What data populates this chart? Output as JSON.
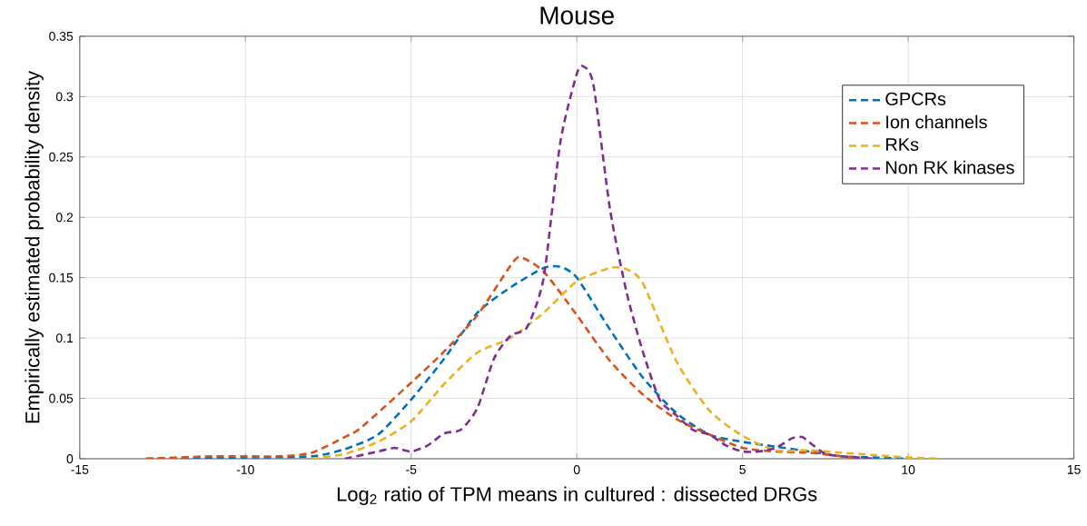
{
  "chart_data": {
    "type": "line",
    "title": "Mouse",
    "xlabel": "Log$_{2}$ ratio of TPM means in cultured : dissected DRGs",
    "ylabel": "Empirically estimated probability density",
    "xlim": [
      -15,
      15
    ],
    "ylim": [
      0,
      0.35
    ],
    "xticks": [
      -15,
      -10,
      -5,
      0,
      5,
      10,
      15
    ],
    "yticks": [
      0,
      0.05,
      0.1,
      0.15,
      0.2,
      0.25,
      0.3,
      0.35
    ],
    "grid": true,
    "legend": "top right",
    "line_style": "dashed",
    "marker": "none",
    "series": [
      {
        "name": "GPCRs",
        "color": "#0072bd",
        "x": [
          -13,
          -10,
          -8,
          -7,
          -6,
          -5,
          -4,
          -3,
          -2,
          -1,
          -0.5,
          0,
          1,
          2,
          3,
          4,
          5,
          6,
          7,
          8,
          9,
          10
        ],
        "values": [
          0,
          0.001,
          0.002,
          0.008,
          0.02,
          0.049,
          0.083,
          0.121,
          0.142,
          0.158,
          0.159,
          0.15,
          0.107,
          0.067,
          0.038,
          0.02,
          0.014,
          0.01,
          0.006,
          0.002,
          0.001,
          0
        ]
      },
      {
        "name": "Ion channels",
        "color": "#d95319",
        "x": [
          -13,
          -11,
          -9,
          -8,
          -7,
          -6.5,
          -5,
          -4,
          -3,
          -2,
          -1.7,
          -1,
          0,
          1,
          2,
          3,
          4,
          5,
          6,
          7,
          8,
          8.5
        ],
        "values": [
          0,
          0.002,
          0.002,
          0.005,
          0.018,
          0.026,
          0.063,
          0.089,
          0.119,
          0.16,
          0.167,
          0.155,
          0.119,
          0.081,
          0.053,
          0.033,
          0.02,
          0.009,
          0.006,
          0.005,
          0.002,
          0
        ]
      },
      {
        "name": "RKs",
        "color": "#edb120",
        "x": [
          -8,
          -7,
          -6,
          -5,
          -4,
          -3,
          -2,
          -1,
          0,
          1,
          1.5,
          2,
          3,
          4,
          5,
          6,
          7,
          8,
          9,
          10,
          11
        ],
        "values": [
          0,
          0.004,
          0.014,
          0.031,
          0.062,
          0.088,
          0.1,
          0.121,
          0.147,
          0.158,
          0.157,
          0.145,
          0.081,
          0.04,
          0.019,
          0.007,
          0.007,
          0.005,
          0.003,
          0.001,
          0
        ]
      },
      {
        "name": "Non RK kinases",
        "color": "#7e2f8e",
        "x": [
          -7,
          -6,
          -5.5,
          -5,
          -4.5,
          -4,
          -3.5,
          -3,
          -2.5,
          -2,
          -1.5,
          -1,
          -0.5,
          0,
          0.2,
          0.5,
          1,
          1.5,
          2,
          2.5,
          3,
          3.5,
          4,
          4.5,
          5,
          5.5,
          6,
          6.5,
          6.8,
          7,
          7.5,
          8,
          8.5,
          9
        ],
        "values": [
          0,
          0.006,
          0.009,
          0.006,
          0.011,
          0.021,
          0.024,
          0.042,
          0.083,
          0.102,
          0.109,
          0.15,
          0.262,
          0.319,
          0.325,
          0.31,
          0.207,
          0.138,
          0.088,
          0.049,
          0.036,
          0.024,
          0.02,
          0.011,
          0.006,
          0.006,
          0.009,
          0.017,
          0.018,
          0.014,
          0.004,
          0.002,
          0.001,
          0
        ]
      }
    ]
  }
}
